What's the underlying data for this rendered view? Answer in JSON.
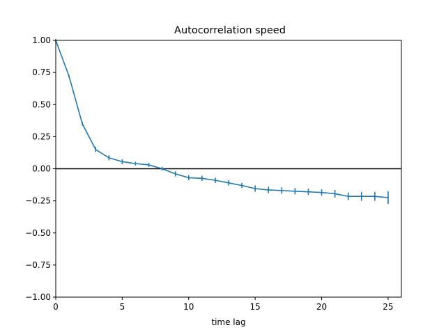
{
  "chart_data": {
    "type": "line",
    "title": "Autocorrelation speed",
    "xlabel": "time lag",
    "ylabel": "",
    "xlim": [
      0,
      26
    ],
    "ylim": [
      -1.0,
      1.0
    ],
    "xticks": [
      0,
      5,
      10,
      15,
      20,
      25
    ],
    "xtick_labels": [
      "0",
      "5",
      "10",
      "15",
      "20",
      "25"
    ],
    "yticks": [
      -1.0,
      -0.75,
      -0.5,
      -0.25,
      0.0,
      0.25,
      0.5,
      0.75,
      1.0
    ],
    "ytick_labels": [
      "−1.00",
      "−0.75",
      "−0.50",
      "−0.25",
      "0.00",
      "0.25",
      "0.50",
      "0.75",
      "1.00"
    ],
    "grid": false,
    "reference_line": {
      "y": 0.0,
      "color": "#000000"
    },
    "series": [
      {
        "color": "#1f77b4",
        "x": [
          0,
          1,
          2,
          3,
          4,
          5,
          6,
          7,
          8,
          9,
          10,
          11,
          12,
          13,
          14,
          15,
          16,
          17,
          18,
          19,
          20,
          21,
          22,
          23,
          24,
          25
        ],
        "y": [
          1.0,
          0.72,
          0.35,
          0.15,
          0.085,
          0.055,
          0.04,
          0.03,
          0.0,
          -0.04,
          -0.07,
          -0.075,
          -0.09,
          -0.11,
          -0.13,
          -0.155,
          -0.165,
          -0.17,
          -0.175,
          -0.18,
          -0.185,
          -0.195,
          -0.215,
          -0.215,
          -0.215,
          -0.225
        ],
        "yerr": [
          0.0,
          0.01,
          0.015,
          0.02,
          0.02,
          0.02,
          0.015,
          0.015,
          0.015,
          0.02,
          0.02,
          0.02,
          0.02,
          0.02,
          0.02,
          0.025,
          0.025,
          0.025,
          0.025,
          0.025,
          0.025,
          0.03,
          0.03,
          0.035,
          0.035,
          0.05
        ]
      }
    ]
  }
}
